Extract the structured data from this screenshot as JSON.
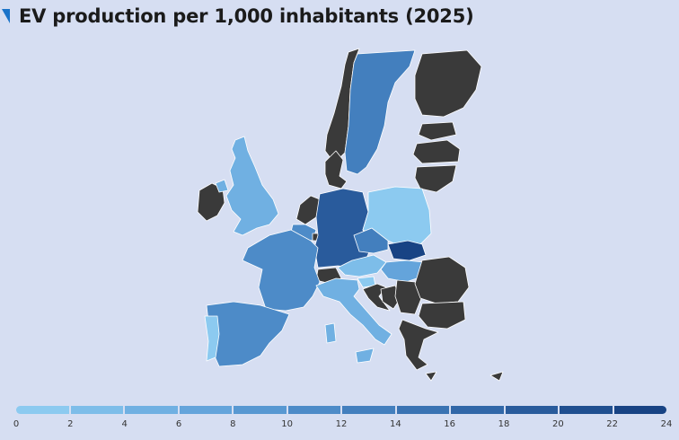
{
  "header": {
    "title": "EV production per 1,000 inhabitants (2025)"
  },
  "colors": {
    "background": "#d6def2",
    "no_data": "#3a3a3a",
    "title_mark": "#1a73c9",
    "scale": [
      "#8ccaf0",
      "#7dbde9",
      "#70b0e2",
      "#64a4db",
      "#5898d2",
      "#4d8bc8",
      "#437fbe",
      "#3a73b3",
      "#3167a8",
      "#295b9c",
      "#204f90",
      "#184384"
    ]
  },
  "legend": {
    "ticks": [
      "0",
      "2",
      "4",
      "6",
      "8",
      "10",
      "12",
      "14",
      "16",
      "18",
      "20",
      "22",
      "24"
    ]
  },
  "map": {
    "countries": [
      {
        "name": "Ireland",
        "value": null
      },
      {
        "name": "United Kingdom",
        "value": 6
      },
      {
        "name": "Norway",
        "value": null
      },
      {
        "name": "Sweden",
        "value": 14
      },
      {
        "name": "Finland",
        "value": null
      },
      {
        "name": "Estonia",
        "value": null
      },
      {
        "name": "Latvia",
        "value": null
      },
      {
        "name": "Lithuania",
        "value": null
      },
      {
        "name": "Denmark",
        "value": null
      },
      {
        "name": "Netherlands",
        "value": null
      },
      {
        "name": "Belgium",
        "value": 12
      },
      {
        "name": "Luxembourg",
        "value": null
      },
      {
        "name": "Germany",
        "value": 20
      },
      {
        "name": "Poland",
        "value": 2
      },
      {
        "name": "Czechia",
        "value": 14
      },
      {
        "name": "Slovakia",
        "value": 24
      },
      {
        "name": "Austria",
        "value": 4
      },
      {
        "name": "Switzerland",
        "value": null
      },
      {
        "name": "Hungary",
        "value": 8
      },
      {
        "name": "Slovenia",
        "value": 2
      },
      {
        "name": "Croatia",
        "value": null
      },
      {
        "name": "Bosnia",
        "value": null
      },
      {
        "name": "Serbia",
        "value": null
      },
      {
        "name": "Romania",
        "value": null
      },
      {
        "name": "Bulgaria",
        "value": null
      },
      {
        "name": "Greece",
        "value": null
      },
      {
        "name": "France",
        "value": 12
      },
      {
        "name": "Spain",
        "value": 12
      },
      {
        "name": "Portugal",
        "value": 2
      },
      {
        "name": "Italy",
        "value": 6
      },
      {
        "name": "Sardinia",
        "value": 6
      },
      {
        "name": "Sicily",
        "value": 6
      },
      {
        "name": "Cyprus",
        "value": null
      }
    ]
  }
}
